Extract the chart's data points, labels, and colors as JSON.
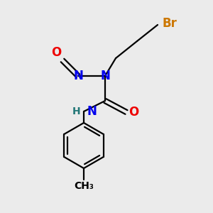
{
  "bg_color": "#ebebeb",
  "atom_colors": {
    "C": "#000000",
    "N": "#0000ee",
    "O": "#ee0000",
    "Br": "#cc7700",
    "H": "#227777"
  },
  "bond_lw": 1.6,
  "font_size": 12,
  "font_size_small": 10
}
